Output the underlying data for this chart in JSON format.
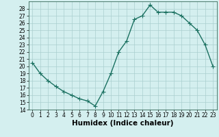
{
  "x": [
    0,
    1,
    2,
    3,
    4,
    5,
    6,
    7,
    8,
    9,
    10,
    11,
    12,
    13,
    14,
    15,
    16,
    17,
    18,
    19,
    20,
    21,
    22,
    23
  ],
  "y": [
    20.5,
    19.0,
    18.0,
    17.2,
    16.5,
    16.0,
    15.5,
    15.2,
    14.5,
    16.5,
    19.0,
    22.0,
    23.5,
    26.5,
    27.0,
    28.5,
    27.5,
    27.5,
    27.5,
    27.0,
    26.0,
    25.0,
    23.0,
    20.0
  ],
  "line_color": "#1a7060",
  "marker": "+",
  "marker_size": 4,
  "xlabel": "Humidex (Indice chaleur)",
  "xlim": [
    -0.5,
    23.5
  ],
  "ylim": [
    14,
    29
  ],
  "yticks": [
    14,
    15,
    16,
    17,
    18,
    19,
    20,
    21,
    22,
    23,
    24,
    25,
    26,
    27,
    28
  ],
  "xticks": [
    0,
    1,
    2,
    3,
    4,
    5,
    6,
    7,
    8,
    9,
    10,
    11,
    12,
    13,
    14,
    15,
    16,
    17,
    18,
    19,
    20,
    21,
    22,
    23
  ],
  "bg_color": "#d4efef",
  "grid_color": "#aacfcf",
  "tick_label_fontsize": 5.5,
  "xlabel_fontsize": 7.5,
  "line_width": 1.0
}
